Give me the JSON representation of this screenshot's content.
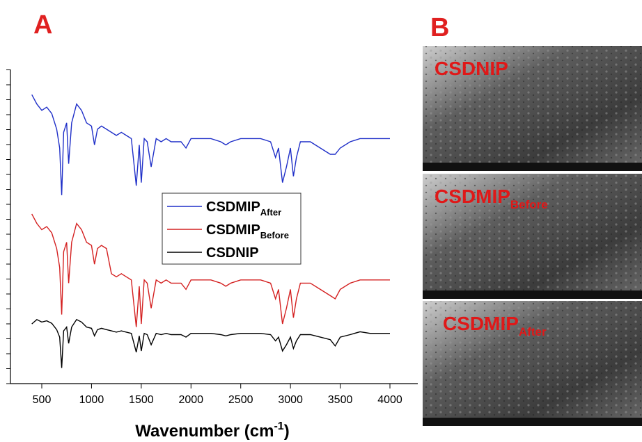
{
  "chart_data": {
    "type": "line",
    "panel_label": "A",
    "x_label": {
      "text": "Wavenumber (cm",
      "superscript": "-1",
      "suffix": ")"
    },
    "xlim": [
      185,
      4280
    ],
    "ylim": [
      0,
      100
    ],
    "xticks": [
      500,
      1000,
      1500,
      2000,
      2500,
      3000,
      3500,
      4000
    ],
    "x": [
      400,
      450,
      500,
      550,
      600,
      650,
      680,
      700,
      720,
      750,
      770,
      800,
      850,
      900,
      950,
      1000,
      1030,
      1060,
      1100,
      1150,
      1200,
      1250,
      1300,
      1350,
      1400,
      1450,
      1480,
      1500,
      1530,
      1560,
      1600,
      1650,
      1700,
      1750,
      1800,
      1850,
      1900,
      1950,
      2000,
      2100,
      2200,
      2300,
      2350,
      2400,
      2500,
      2600,
      2700,
      2800,
      2850,
      2880,
      2920,
      2960,
      3000,
      3030,
      3060,
      3100,
      3200,
      3300,
      3400,
      3450,
      3500,
      3600,
      3700,
      3800,
      3900,
      4000
    ],
    "series": [
      {
        "name": "CSDMIP",
        "subscript": "After",
        "color": "#1f2fc8",
        "values": [
          92,
          89,
          87,
          88,
          86,
          81,
          75,
          60,
          80,
          83,
          70,
          83,
          89,
          87,
          83,
          82,
          76,
          81,
          82,
          81,
          80,
          79,
          80,
          79,
          78,
          63,
          76,
          64,
          78,
          77,
          69,
          78,
          77,
          78,
          77,
          77,
          77,
          75,
          78,
          78,
          78,
          77,
          76,
          77,
          78,
          78,
          78,
          77,
          72,
          75,
          64,
          69,
          75,
          66,
          72,
          77,
          77,
          75,
          73,
          73,
          75,
          77,
          78,
          78,
          78,
          78
        ]
      },
      {
        "name": "CSDMIP",
        "subscript": "Before",
        "color": "#d42020",
        "values": [
          54,
          51,
          49,
          50,
          48,
          43,
          37,
          22,
          42,
          45,
          32,
          45,
          51,
          49,
          45,
          44,
          38,
          43,
          44,
          43,
          35,
          34,
          35,
          34,
          33,
          18,
          31,
          19,
          33,
          32,
          24,
          33,
          32,
          33,
          32,
          32,
          32,
          30,
          33,
          33,
          33,
          32,
          31,
          32,
          33,
          33,
          33,
          32,
          27,
          30,
          19,
          24,
          30,
          21,
          27,
          32,
          32,
          30,
          28,
          27,
          30,
          32,
          33,
          33,
          33,
          33
        ]
      },
      {
        "name": "CSDNIP",
        "color": "#000000",
        "values": [
          19,
          20.4,
          19.6,
          20,
          19.2,
          17.2,
          14.8,
          5,
          16.8,
          18,
          12.8,
          18,
          20.4,
          19.6,
          18,
          17.6,
          15.2,
          17.2,
          17.6,
          17.2,
          16.8,
          16.4,
          16.8,
          16.4,
          16,
          10,
          15.2,
          10.4,
          16,
          15.6,
          12.4,
          16,
          15.6,
          16,
          15.6,
          15.6,
          15.6,
          14.8,
          16,
          16,
          16,
          15.6,
          15.2,
          15.6,
          16,
          16,
          16,
          15.6,
          13.6,
          14.8,
          10.4,
          12.4,
          14.8,
          11.2,
          13.6,
          15.6,
          15.6,
          14.8,
          14,
          12,
          14.8,
          15.6,
          16.5,
          16,
          16,
          16
        ]
      }
    ]
  },
  "panel_b": {
    "label": "B",
    "images": [
      {
        "label": "CSDNIP"
      },
      {
        "label": "CSDMIP",
        "subscript": "Before"
      },
      {
        "label": "CSDMIP",
        "subscript": "After"
      }
    ]
  }
}
